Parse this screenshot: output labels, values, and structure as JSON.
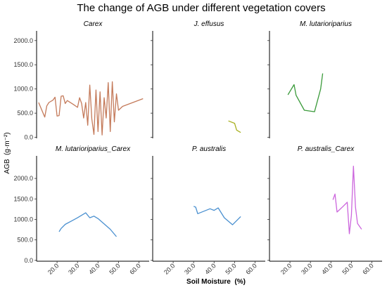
{
  "chart_data": {
    "type": "line",
    "title": "The change of AGB under different vegetation covers",
    "xlabel": "Soil Moisture  (%)",
    "ylabel": "AGB  (g·m⁻²)",
    "xlim": [
      10,
      65
    ],
    "x_ticks": [
      "20.0",
      "30.0",
      "40.0",
      "50.0",
      "60.0"
    ],
    "y_ticks": [
      "0.0",
      "500.0",
      "1000.0",
      "1500.0",
      "2000.0"
    ],
    "ylim_row1": [
      -20,
      2200
    ],
    "ylim_row2": [
      -20,
      2550
    ],
    "grid": false,
    "panels": [
      {
        "name": "Carex",
        "color": "#c47a5a",
        "x": [
          11,
          14,
          15,
          16,
          18,
          19,
          20,
          21,
          22,
          23,
          24,
          25,
          28,
          30,
          31,
          32,
          33,
          34,
          35,
          36,
          37,
          38,
          39,
          40,
          41,
          42,
          43,
          44,
          45,
          46,
          47,
          48,
          49,
          50,
          52,
          62
        ],
        "y": [
          720,
          420,
          650,
          720,
          770,
          830,
          440,
          450,
          850,
          860,
          700,
          760,
          680,
          620,
          820,
          700,
          400,
          720,
          250,
          1080,
          380,
          60,
          980,
          120,
          940,
          50,
          820,
          400,
          1130,
          120,
          1150,
          320,
          900,
          560,
          640,
          800
        ]
      },
      {
        "name": "J. effusus",
        "color": "#a8b020",
        "x": [
          47,
          50,
          51,
          53
        ],
        "y": [
          340,
          290,
          150,
          100
        ]
      },
      {
        "name": "M. lutarioriparius",
        "color": "#3a9a3a",
        "x": [
          19,
          22,
          23,
          27,
          32,
          35,
          36
        ],
        "y": [
          880,
          1090,
          870,
          560,
          530,
          1000,
          1320
        ]
      },
      {
        "name": "M. lutarioriparius_Carex",
        "color": "#4a90d0",
        "x": [
          21,
          22,
          24,
          27,
          30,
          34,
          36,
          37,
          38,
          40,
          46,
          49
        ],
        "y": [
          700,
          780,
          880,
          960,
          1040,
          1160,
          1040,
          1060,
          1080,
          1020,
          760,
          580
        ]
      },
      {
        "name": "P. australis",
        "color": "#4a90d0",
        "x": [
          30,
          31,
          32,
          38,
          40,
          42,
          45,
          49,
          53
        ],
        "y": [
          1320,
          1300,
          1140,
          1260,
          1220,
          1280,
          1040,
          870,
          1070
        ]
      },
      {
        "name": "P. australis_Carex",
        "color": "#cc66dd",
        "x": [
          41,
          42,
          43,
          46,
          48,
          49,
          50,
          51,
          52,
          53,
          55
        ],
        "y": [
          1480,
          1620,
          1180,
          1320,
          1420,
          650,
          1100,
          2300,
          1300,
          900,
          760
        ]
      }
    ]
  }
}
